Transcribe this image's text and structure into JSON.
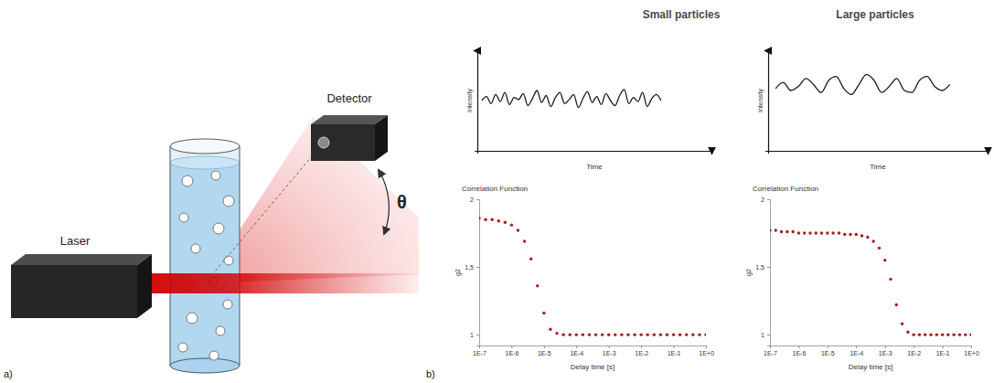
{
  "panels": {
    "a": "a)",
    "b": "b)"
  },
  "diagram": {
    "laser": "Laser",
    "detector": "Detector",
    "angle": "θ"
  },
  "column_titles": [
    "Small particles",
    "Large particles"
  ],
  "chart_data": [
    {
      "type": "line",
      "xlabel": "Time",
      "ylabel": "Intensity",
      "tick_labels": false,
      "color": "#1a1a1a",
      "xlim": [
        -1,
        50
      ],
      "ylim": [
        0,
        100
      ],
      "x": [
        0,
        1,
        2,
        3,
        4,
        5,
        6,
        7,
        8,
        9,
        10,
        11,
        12,
        13,
        14,
        15,
        16,
        17,
        18,
        19,
        20,
        21,
        22,
        23,
        24,
        25,
        26,
        27,
        28,
        29,
        30,
        31,
        32,
        33,
        34,
        35,
        36,
        37,
        38,
        39
      ],
      "values": [
        50,
        54,
        47,
        56,
        49,
        58,
        46,
        53,
        51,
        57,
        45,
        52,
        60,
        48,
        55,
        44,
        53,
        58,
        47,
        51,
        56,
        43,
        52,
        59,
        48,
        54,
        46,
        57,
        50,
        45,
        55,
        61,
        47,
        53,
        49,
        58,
        44,
        52,
        56,
        50
      ]
    },
    {
      "type": "line",
      "xlabel": "Time",
      "ylabel": "Intensity",
      "tick_labels": false,
      "color": "#1a1a1a",
      "xlim": [
        -1,
        28
      ],
      "ylim": [
        0,
        100
      ],
      "x": [
        0,
        1,
        2,
        3,
        4,
        5,
        6,
        7,
        8,
        9,
        10,
        11,
        12,
        13,
        14,
        15,
        16,
        17,
        18,
        19,
        20,
        21,
        22,
        23
      ],
      "values": [
        62,
        68,
        60,
        64,
        72,
        66,
        58,
        70,
        74,
        62,
        56,
        66,
        76,
        70,
        58,
        64,
        72,
        60,
        58,
        70,
        74,
        64,
        60,
        66
      ]
    },
    {
      "type": "scatter",
      "title": "Correlation Function",
      "xlabel": "Delay time [s]",
      "ylabel": "g2",
      "log": "x",
      "marker": "circle",
      "color": "#a31f1f",
      "xlim": [
        1e-07,
        1
      ],
      "ylim": [
        0.92,
        2
      ],
      "xticks": [
        {
          "value": 1e-07,
          "label": "1E-7"
        },
        {
          "value": 1e-06,
          "label": "1E-6"
        },
        {
          "value": 1e-05,
          "label": "1E-5"
        },
        {
          "value": 0.0001,
          "label": "1E-4"
        },
        {
          "value": 0.001,
          "label": "1E-3"
        },
        {
          "value": 0.01,
          "label": "1E-2"
        },
        {
          "value": 0.1,
          "label": "1E-1"
        },
        {
          "value": 1,
          "label": "1E+0"
        }
      ],
      "yticks": [
        1,
        {
          "value": 1.5,
          "label": "1,5"
        },
        2
      ],
      "x": [
        1e-07,
        1.58e-07,
        2.51e-07,
        3.98e-07,
        6.31e-07,
        1e-06,
        1.58e-06,
        2.51e-06,
        3.98e-06,
        6.31e-06,
        1e-05,
        1.58e-05,
        2.51e-05,
        3.98e-05,
        6.31e-05,
        0.0001,
        0.000158,
        0.000251,
        0.000398,
        0.000631,
        0.001,
        0.00158,
        0.00251,
        0.00398,
        0.00631,
        0.01,
        0.0158,
        0.0251,
        0.0398,
        0.0631,
        0.1,
        0.158,
        0.251,
        0.398,
        0.631,
        1
      ],
      "values": [
        1.86,
        1.85,
        1.85,
        1.84,
        1.83,
        1.81,
        1.77,
        1.69,
        1.56,
        1.36,
        1.16,
        1.04,
        1.01,
        1.0,
        1.0,
        1.0,
        1.0,
        1.0,
        1.0,
        1.0,
        1.0,
        1.0,
        1.0,
        1.0,
        1.0,
        1.0,
        1.0,
        1.0,
        1.0,
        1.0,
        1.0,
        1.0,
        1.0,
        1.0,
        1.0,
        1.0
      ]
    },
    {
      "type": "scatter",
      "title": "Correlation Function",
      "xlabel": "Delay time [s]",
      "ylabel": "g2",
      "log": "x",
      "marker": "circle",
      "color": "#a31f1f",
      "xlim": [
        1e-07,
        1
      ],
      "ylim": [
        0.92,
        2
      ],
      "xticks": [
        {
          "value": 1e-07,
          "label": "1E-7"
        },
        {
          "value": 1e-06,
          "label": "1E-6"
        },
        {
          "value": 1e-05,
          "label": "1E-5"
        },
        {
          "value": 0.0001,
          "label": "1E-4"
        },
        {
          "value": 0.001,
          "label": "1E-3"
        },
        {
          "value": 0.01,
          "label": "1E-2"
        },
        {
          "value": 0.1,
          "label": "1E-1"
        },
        {
          "value": 1,
          "label": "1E+0"
        }
      ],
      "yticks": [
        1,
        {
          "value": 1.5,
          "label": "1,5"
        },
        2
      ],
      "x": [
        1e-07,
        1.58e-07,
        2.51e-07,
        3.98e-07,
        6.31e-07,
        1e-06,
        1.58e-06,
        2.51e-06,
        3.98e-06,
        6.31e-06,
        1e-05,
        1.58e-05,
        2.51e-05,
        3.98e-05,
        6.31e-05,
        0.0001,
        0.000158,
        0.000251,
        0.000398,
        0.000631,
        0.001,
        0.00158,
        0.00251,
        0.00398,
        0.00631,
        0.01,
        0.0158,
        0.0251,
        0.0398,
        0.0631,
        0.1,
        0.158,
        0.251,
        0.398,
        0.631,
        1
      ],
      "values": [
        1.77,
        1.77,
        1.76,
        1.76,
        1.76,
        1.75,
        1.75,
        1.75,
        1.75,
        1.75,
        1.75,
        1.75,
        1.75,
        1.74,
        1.74,
        1.74,
        1.73,
        1.72,
        1.69,
        1.64,
        1.55,
        1.41,
        1.22,
        1.08,
        1.02,
        1.0,
        1.0,
        1.0,
        1.0,
        1.0,
        1.0,
        1.0,
        1.0,
        1.0,
        1.0,
        1.0
      ]
    }
  ]
}
